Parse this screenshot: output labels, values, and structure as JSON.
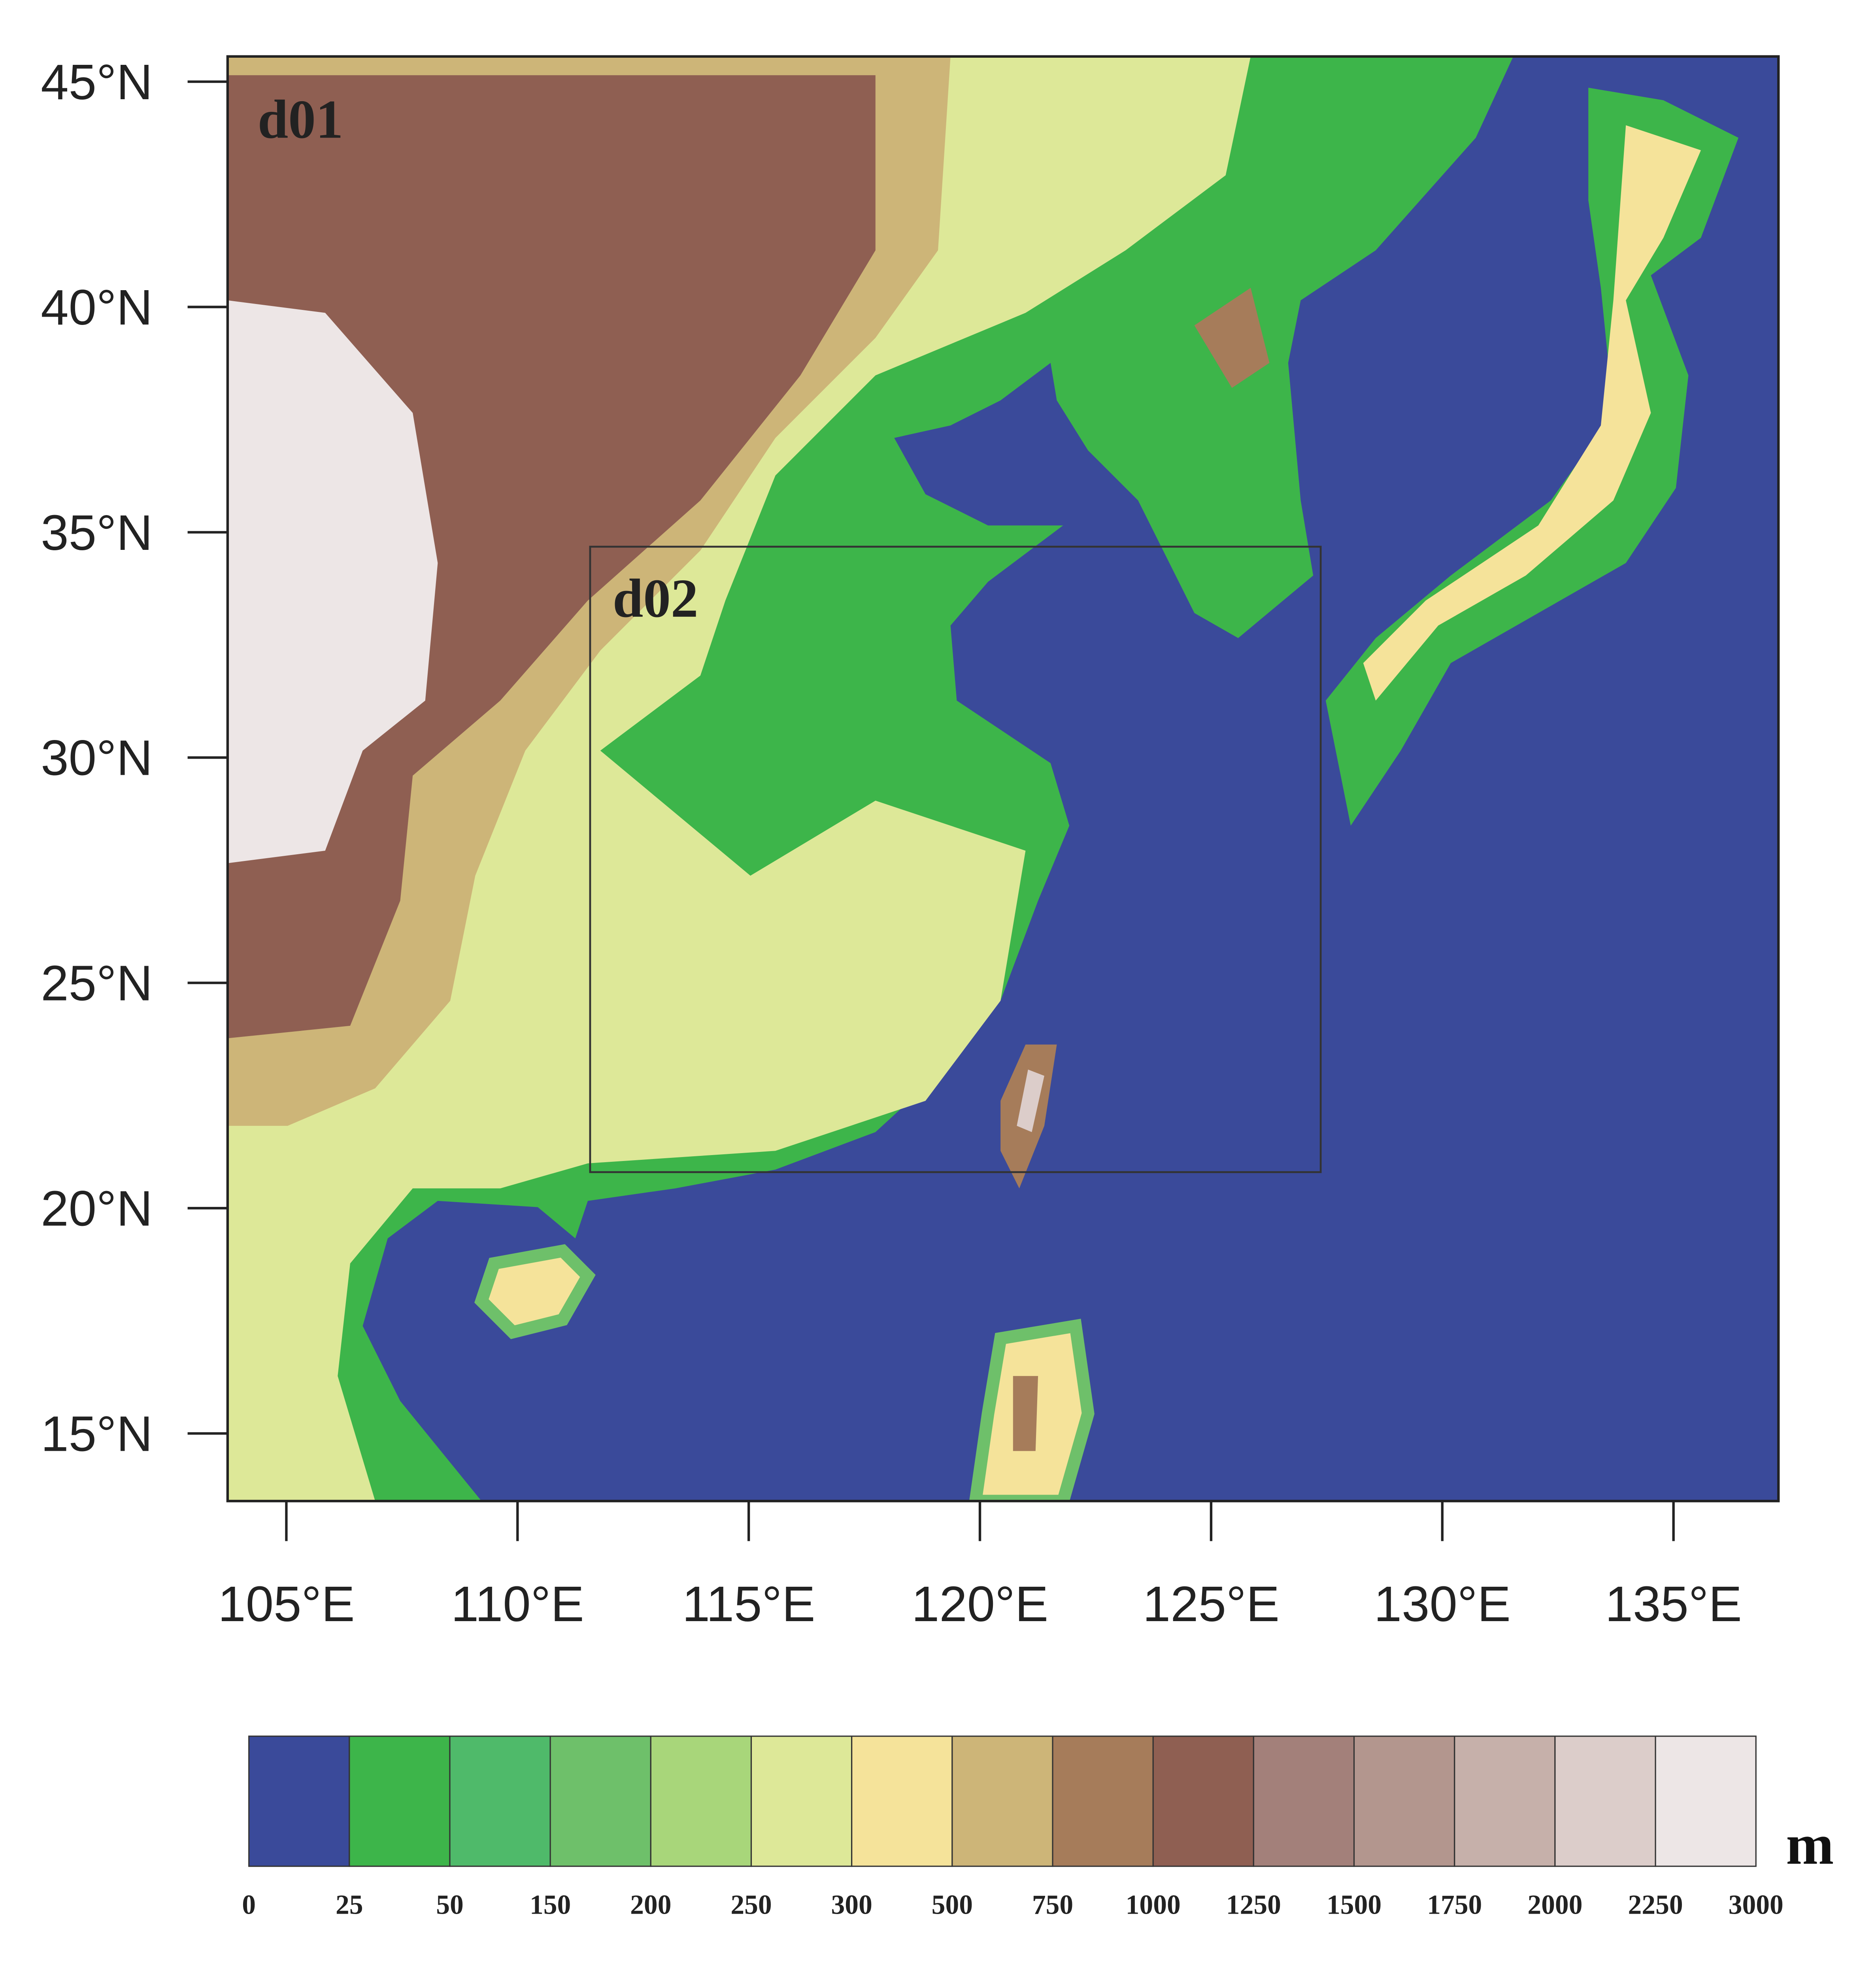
{
  "map": {
    "xlim": [
      103.73,
      137.27
    ],
    "ylim": [
      13.5,
      45.56
    ],
    "xticks": [
      {
        "value": 105,
        "label": "105°E"
      },
      {
        "value": 110,
        "label": "110°E"
      },
      {
        "value": 115,
        "label": "115°E"
      },
      {
        "value": 120,
        "label": "120°E"
      },
      {
        "value": 125,
        "label": "125°E"
      },
      {
        "value": 130,
        "label": "130°E"
      },
      {
        "value": 135,
        "label": "135°E"
      }
    ],
    "yticks": [
      {
        "value": 45,
        "label": "45°N"
      },
      {
        "value": 40,
        "label": "40°N"
      },
      {
        "value": 35,
        "label": "35°N"
      },
      {
        "value": 30,
        "label": "30°N"
      },
      {
        "value": 25,
        "label": "25°N"
      },
      {
        "value": 20,
        "label": "20°N"
      },
      {
        "value": 15,
        "label": "15°N"
      }
    ],
    "domains": [
      {
        "label": "d01"
      },
      {
        "label": "d02",
        "lon": [
          111.57,
          127.37
        ],
        "lat": [
          20.8,
          34.68
        ]
      }
    ],
    "colorbar": {
      "unit": "m",
      "levels": [
        0,
        25,
        50,
        150,
        200,
        250,
        300,
        500,
        750,
        1000,
        1250,
        1500,
        1750,
        2000,
        2250,
        3000
      ],
      "colors": [
        "#3a4a9a",
        "#3db54a",
        "#4fba6a",
        "#6ec06a",
        "#a8d67a",
        "#dde898",
        "#f5e39a",
        "#cdb578",
        "#a67c5a",
        "#8f5f52",
        "#a3807a",
        "#b3968e",
        "#c6b0aa",
        "#dccdca",
        "#ede6e6"
      ]
    }
  }
}
